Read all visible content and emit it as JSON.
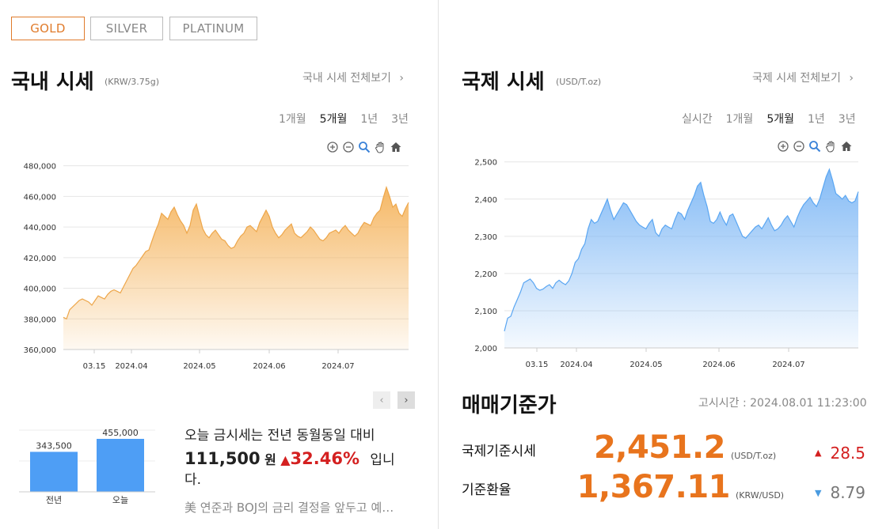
{
  "metal_tabs": [
    "GOLD",
    "SILVER",
    "PLATINUM"
  ],
  "domestic": {
    "title": "국내 시세",
    "unit": "(KRW/3.75g)",
    "view_all": "국내 시세 전체보기",
    "periods": [
      "1개월",
      "5개월",
      "1년",
      "3년"
    ],
    "selected_period": "5개월",
    "chart_data": {
      "type": "area",
      "x_ticks": [
        "03.15",
        "2024.04",
        "2024.05",
        "2024.06",
        "2024.07"
      ],
      "y_ticks": [
        "480,000",
        "460,000",
        "440,000",
        "420,000",
        "400,000",
        "380,000",
        "360,000"
      ],
      "ylim": [
        360000,
        485000
      ],
      "values": [
        381000,
        380000,
        386000,
        388000,
        390000,
        392000,
        393000,
        392000,
        391000,
        389000,
        392000,
        395000,
        394000,
        393000,
        396000,
        398000,
        399000,
        398000,
        397000,
        401000,
        405000,
        409000,
        413000,
        415000,
        418000,
        421000,
        424000,
        425000,
        431000,
        437000,
        442000,
        449000,
        447000,
        445000,
        450000,
        453000,
        448000,
        444000,
        441000,
        436000,
        441000,
        451000,
        455000,
        447000,
        439000,
        435000,
        433000,
        436000,
        438000,
        435000,
        432000,
        431000,
        428000,
        426000,
        427000,
        431000,
        434000,
        436000,
        440000,
        441000,
        439000,
        437000,
        443000,
        447000,
        451000,
        447000,
        440000,
        436000,
        433000,
        435000,
        438000,
        440000,
        442000,
        436000,
        434000,
        433000,
        435000,
        437000,
        440000,
        438000,
        435000,
        432000,
        431000,
        433000,
        436000,
        437000,
        438000,
        436000,
        439000,
        441000,
        438000,
        436000,
        434000,
        436000,
        440000,
        443000,
        442000,
        441000,
        446000,
        449000,
        451000,
        459000,
        466000,
        460000,
        453000,
        455000,
        449000,
        447000,
        452000,
        456000
      ]
    }
  },
  "international": {
    "title": "국제 시세",
    "unit": "(USD/T.oz)",
    "view_all": "국제 시세 전체보기",
    "periods": [
      "실시간",
      "1개월",
      "5개월",
      "1년",
      "3년"
    ],
    "selected_period": "5개월",
    "chart_data": {
      "type": "area",
      "x_ticks": [
        "03.15",
        "2024.04",
        "2024.05",
        "2024.06",
        "2024.07"
      ],
      "y_ticks": [
        "2,500",
        "2,400",
        "2,300",
        "2,200",
        "2,100",
        "2,000"
      ],
      "ylim": [
        2000,
        2510
      ],
      "values": [
        2045,
        2080,
        2085,
        2110,
        2130,
        2150,
        2175,
        2180,
        2185,
        2175,
        2160,
        2155,
        2158,
        2165,
        2170,
        2160,
        2175,
        2182,
        2175,
        2170,
        2180,
        2200,
        2230,
        2240,
        2265,
        2280,
        2320,
        2345,
        2335,
        2340,
        2360,
        2380,
        2400,
        2370,
        2345,
        2360,
        2375,
        2390,
        2385,
        2370,
        2355,
        2340,
        2330,
        2325,
        2320,
        2335,
        2345,
        2310,
        2300,
        2320,
        2330,
        2325,
        2320,
        2345,
        2365,
        2360,
        2345,
        2370,
        2390,
        2410,
        2435,
        2445,
        2410,
        2380,
        2340,
        2335,
        2345,
        2365,
        2345,
        2330,
        2355,
        2360,
        2340,
        2320,
        2300,
        2295,
        2305,
        2315,
        2325,
        2330,
        2320,
        2335,
        2350,
        2330,
        2315,
        2320,
        2330,
        2345,
        2355,
        2340,
        2325,
        2350,
        2370,
        2385,
        2395,
        2405,
        2390,
        2380,
        2400,
        2430,
        2460,
        2480,
        2450,
        2415,
        2408,
        2400,
        2410,
        2395,
        2390,
        2395,
        2420
      ]
    }
  },
  "comparison": {
    "bars": [
      {
        "label": "전년",
        "value_text": "343,500",
        "value": 343500
      },
      {
        "label": "오늘",
        "value_text": "455,000",
        "value": 455000
      }
    ],
    "text_before": "오늘 금시세는 전년 동월동일 대비",
    "diff_amount": "111,500",
    "diff_unit": "원",
    "diff_pct": "32.46%",
    "text_after": "입니",
    "text_wrap": "다.",
    "news": "美 연준과 BOJ의 금리 결정을 앞두고 예…"
  },
  "base_price": {
    "title": "매매기준가",
    "notice_time": "고시시간 : 2024.08.01 11:23:00",
    "rows": [
      {
        "label": "국제기준시세",
        "value": "2,451.2",
        "unit": "(USD/T.oz)",
        "dir": "▲",
        "change": "28.5"
      },
      {
        "label": "기준환율",
        "value": "1,367.11",
        "unit": "(KRW/USD)",
        "dir": "▼",
        "change": "8.79"
      }
    ]
  },
  "colors": {
    "accent": "#e07b2b",
    "value_orange": "#e8741d",
    "up_red": "#d42020",
    "down_blue": "#4a9be0",
    "gold_fill": "#f5b45d",
    "blue_fill": "#7db7f5",
    "bar_blue": "#4e9ef5"
  }
}
